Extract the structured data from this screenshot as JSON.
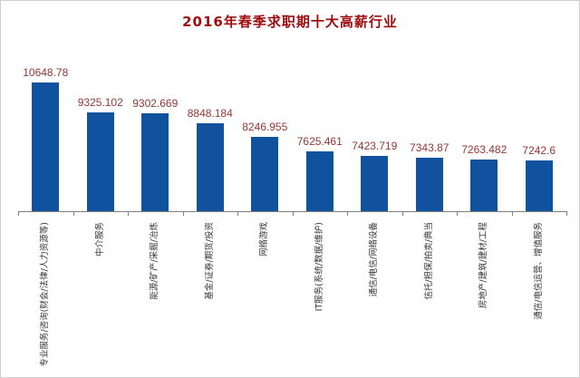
{
  "chart_data": {
    "type": "bar",
    "title": "2016年春季求职期十大高薪行业",
    "categories": [
      "专业服务/咨询(财会/法律/人力资源等)",
      "中介服务",
      "能源/矿产/采掘/冶炼",
      "基金/证券/期货/投资",
      "网络游戏",
      "IT服务(系统/数据/维护)",
      "通信/电信/网络设备",
      "信托/担保/拍卖/典当",
      "房地产/建筑/建材/工程",
      "通信/电信运营、增值服务"
    ],
    "values": [
      10648.78,
      9325.102,
      9302.669,
      8848.184,
      8246.955,
      7625.461,
      7423.719,
      7343.87,
      7263.482,
      7242.6
    ],
    "value_labels": [
      "10648.78",
      "9325.102",
      "9302.669",
      "8848.184",
      "8246.955",
      "7625.461",
      "7423.719",
      "7343.87",
      "7263.482",
      "7242.6"
    ],
    "xlabel": "",
    "ylabel": "",
    "ylim": [
      5000,
      11000
    ],
    "grid": false,
    "legend": null,
    "bar_color": "#10529d",
    "value_label_color": "#953735",
    "title_color": "#9e0b0c",
    "axis_color": "#808080",
    "category_label_color": "#333333"
  }
}
